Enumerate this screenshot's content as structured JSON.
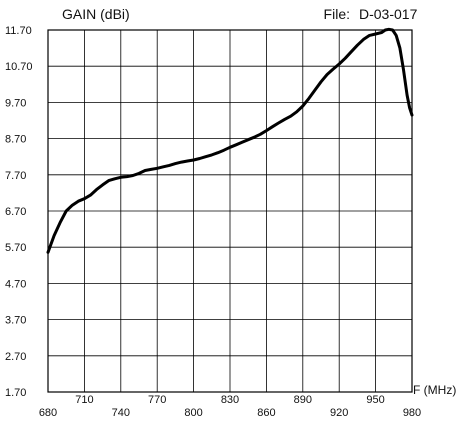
{
  "chart_data": {
    "type": "line",
    "title": "",
    "ylabel": "GAIN (dBi)",
    "xlabel": "F (MHz)",
    "file_label": "File:",
    "file_id": "D-03-017",
    "xlim": [
      680,
      980
    ],
    "ylim": [
      1.7,
      11.7
    ],
    "grid": true,
    "y_ticks": [
      11.7,
      10.7,
      9.7,
      8.7,
      7.7,
      6.7,
      5.7,
      4.7,
      3.7,
      2.7,
      1.7
    ],
    "y_tick_labels": [
      "11.70",
      "10.70",
      "9.70",
      "8.70",
      "7.70",
      "6.70",
      "5.70",
      "4.70",
      "3.70",
      "2.70",
      "1.70"
    ],
    "x_ticks_upper": [
      710,
      770,
      830,
      890,
      950
    ],
    "x_tick_labels_upper": [
      "710",
      "770",
      "830",
      "890",
      "950"
    ],
    "x_ticks_lower": [
      680,
      740,
      800,
      860,
      920,
      980
    ],
    "x_tick_labels_lower": [
      "680",
      "740",
      "800",
      "860",
      "920",
      "980"
    ],
    "series": [
      {
        "color": "#000000",
        "x": [
          680,
          685,
          690,
          695,
          700,
          705,
          710,
          715,
          720,
          725,
          730,
          735,
          740,
          745,
          750,
          755,
          760,
          765,
          770,
          775,
          780,
          785,
          790,
          795,
          800,
          805,
          810,
          815,
          820,
          825,
          830,
          835,
          840,
          845,
          850,
          855,
          860,
          865,
          870,
          875,
          880,
          885,
          890,
          895,
          900,
          905,
          910,
          915,
          920,
          925,
          930,
          935,
          940,
          945,
          950,
          955,
          958,
          961,
          964,
          967,
          970,
          973,
          976,
          978,
          980
        ],
        "y": [
          5.56,
          6.02,
          6.38,
          6.7,
          6.86,
          6.97,
          7.04,
          7.14,
          7.29,
          7.42,
          7.54,
          7.59,
          7.63,
          7.65,
          7.68,
          7.74,
          7.82,
          7.85,
          7.88,
          7.92,
          7.96,
          8.01,
          8.05,
          8.08,
          8.11,
          8.15,
          8.2,
          8.25,
          8.31,
          8.38,
          8.46,
          8.53,
          8.6,
          8.67,
          8.74,
          8.82,
          8.92,
          9.03,
          9.13,
          9.23,
          9.32,
          9.44,
          9.6,
          9.81,
          10.04,
          10.27,
          10.47,
          10.62,
          10.76,
          10.92,
          11.1,
          11.28,
          11.44,
          11.55,
          11.59,
          11.63,
          11.7,
          11.72,
          11.7,
          11.55,
          11.2,
          10.6,
          9.9,
          9.55,
          9.35
        ]
      }
    ]
  }
}
